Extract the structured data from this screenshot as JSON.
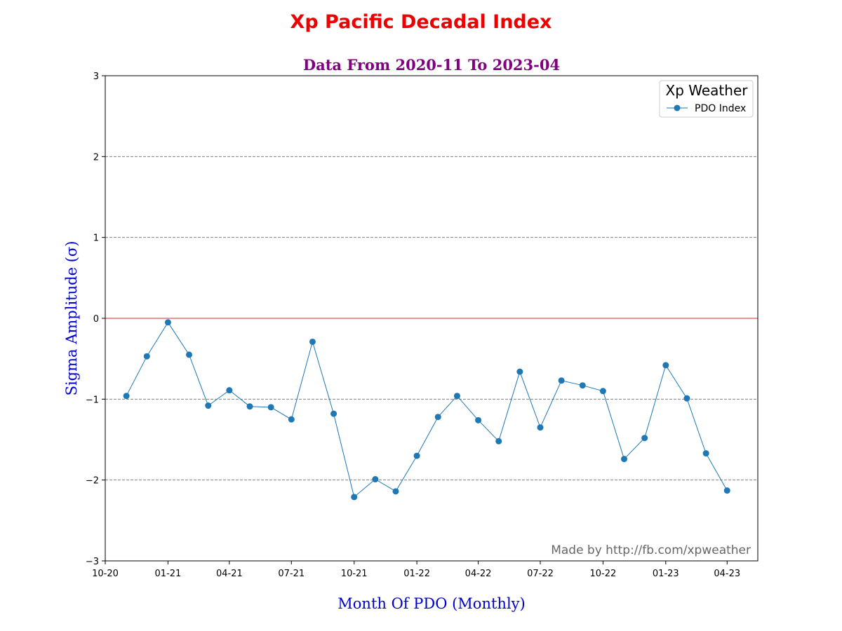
{
  "chart_data": {
    "type": "line",
    "title": "Xp Pacific Decadal Index",
    "subtitle": "Data From 2020-11 To 2023-04",
    "xlabel": "Month Of PDO (Monthly)",
    "ylabel": "Sigma Amplitude (σ)",
    "ylim": [
      -3,
      3
    ],
    "yticks": [
      -3,
      -2,
      -1,
      0,
      1,
      2,
      3
    ],
    "ytick_labels": [
      "−3",
      "−2",
      "−1",
      "0",
      "1",
      "2",
      "3"
    ],
    "xlim": [
      "2020-10-01",
      "2023-05-16"
    ],
    "xticks": [
      "2020-10-01",
      "2021-01-01",
      "2021-04-01",
      "2021-07-01",
      "2021-10-01",
      "2022-01-01",
      "2022-04-01",
      "2022-07-01",
      "2022-10-01",
      "2023-01-01",
      "2023-04-01"
    ],
    "xtick_labels": [
      "10-20",
      "01-21",
      "04-21",
      "07-21",
      "10-21",
      "01-22",
      "04-22",
      "07-22",
      "10-22",
      "01-23",
      "04-23"
    ],
    "grid": "horizontal dashed",
    "reference_line": {
      "y": 0,
      "color": "#d62728"
    },
    "legend": {
      "title": "Xp Weather",
      "placement": "top-right"
    },
    "credit": "Made by http://fb.com/xpweather",
    "series": [
      {
        "name": "PDO Index",
        "color": "#1f77b4",
        "x": [
          "2020-11-01",
          "2020-12-01",
          "2021-01-01",
          "2021-02-01",
          "2021-03-01",
          "2021-04-01",
          "2021-05-01",
          "2021-06-01",
          "2021-07-01",
          "2021-08-01",
          "2021-09-01",
          "2021-10-01",
          "2021-11-01",
          "2021-12-01",
          "2022-01-01",
          "2022-02-01",
          "2022-03-01",
          "2022-04-01",
          "2022-05-01",
          "2022-06-01",
          "2022-07-01",
          "2022-08-01",
          "2022-09-01",
          "2022-10-01",
          "2022-11-01",
          "2022-12-01",
          "2023-01-01",
          "2023-02-01",
          "2023-03-01",
          "2023-04-01"
        ],
        "values": [
          -0.96,
          -0.47,
          -0.05,
          -0.45,
          -1.08,
          -0.89,
          -1.09,
          -1.1,
          -1.25,
          -0.29,
          -1.18,
          -2.21,
          -1.99,
          -2.14,
          -1.7,
          -1.22,
          -0.96,
          -1.26,
          -1.52,
          -0.66,
          -1.35,
          -0.77,
          -0.83,
          -0.9,
          -1.74,
          -1.48,
          -0.58,
          -0.99,
          -1.67,
          -2.13
        ]
      }
    ],
    "colors": {
      "title": "#ee0000",
      "subtitle": "#800080",
      "axis_label": "#0000cc",
      "credit": "#666666",
      "grid": "#808080"
    }
  }
}
